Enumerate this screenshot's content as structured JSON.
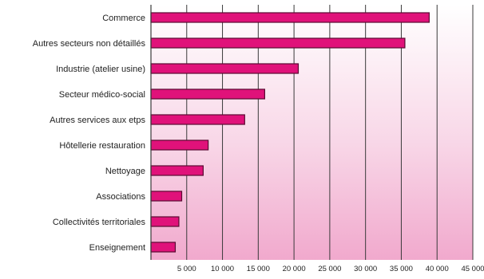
{
  "chart_data": {
    "type": "bar",
    "orientation": "horizontal",
    "title": "",
    "xlabel": "",
    "ylabel": "",
    "categories": [
      "Commerce",
      "Autres secteurs non détaillés",
      "Industrie (atelier usine)",
      "Secteur médico-social",
      "Autres services aux etps",
      "Hôtellerie restauration",
      "Nettoyage",
      "Associations",
      "Collectivités territoriales",
      "Enseignement"
    ],
    "values": [
      38900,
      35500,
      20600,
      15900,
      13100,
      8000,
      7300,
      4300,
      3900,
      3400
    ],
    "xlim": [
      0,
      45000
    ],
    "x_ticks": [
      5000,
      10000,
      15000,
      20000,
      25000,
      30000,
      35000,
      40000,
      45000
    ],
    "x_tick_labels": [
      "5 000",
      "10 000",
      "15 000",
      "20 000",
      "25 000",
      "30 000",
      "35 000",
      "40 000",
      "45 000"
    ],
    "grid": true,
    "colors": {
      "bar": "#e0127a",
      "bar_edge": "#5a0a32",
      "background_top": "#ffffff",
      "background_bottom": "#f1a9cd",
      "gridline": "#3a3a3a",
      "text": "#222222"
    }
  }
}
